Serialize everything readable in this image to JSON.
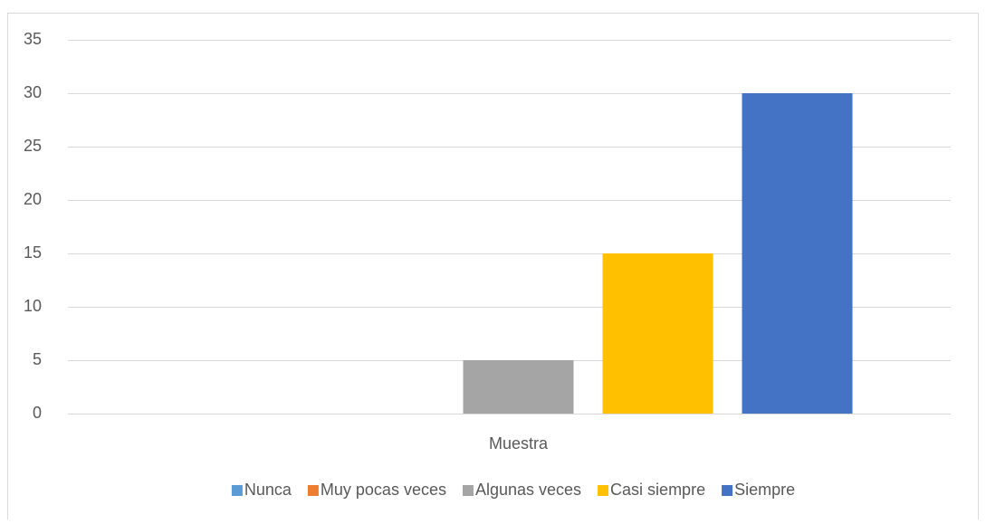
{
  "chart_data": {
    "type": "bar",
    "categories": [
      "Muestra"
    ],
    "series": [
      {
        "name": "Nunca",
        "color": "#5b9bd5",
        "values": [
          0
        ]
      },
      {
        "name": "Muy pocas veces",
        "color": "#ed7d31",
        "values": [
          0
        ]
      },
      {
        "name": "Algunas veces",
        "color": "#a5a5a5",
        "values": [
          5
        ]
      },
      {
        "name": "Casi siempre",
        "color": "#ffc000",
        "values": [
          15
        ]
      },
      {
        "name": "Siempre",
        "color": "#4472c4",
        "values": [
          30
        ]
      }
    ],
    "ylim": [
      0,
      35
    ],
    "yticks": [
      0,
      5,
      10,
      15,
      20,
      25,
      30,
      35
    ],
    "grid": true,
    "legend": "bottom"
  }
}
